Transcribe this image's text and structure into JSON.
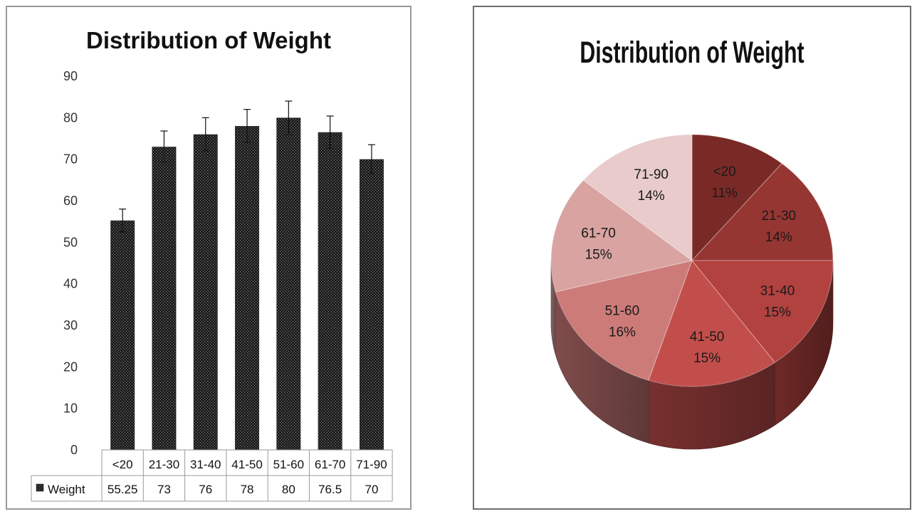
{
  "chart_data": [
    {
      "type": "bar",
      "title": "Distribution of Weight",
      "categories": [
        "<20",
        "21-30",
        "31-40",
        "41-50",
        "51-60",
        "61-70",
        "71-90"
      ],
      "series": [
        {
          "name": "Weight",
          "values": [
            55.25,
            73,
            76,
            78,
            80,
            76.5,
            70
          ],
          "error_upper": [
            58,
            76.8,
            80,
            82,
            84,
            80.4,
            73.5
          ],
          "error_lower": [
            52.5,
            69.2,
            72,
            74,
            76,
            72.6,
            66.5
          ]
        }
      ],
      "ylim": [
        0,
        90
      ],
      "yticks": [
        0,
        10,
        20,
        30,
        40,
        50,
        60,
        70,
        80,
        90
      ],
      "value_labels": [
        "55.25",
        "73",
        "76",
        "78",
        "80",
        "76.5",
        "70"
      ],
      "grid": false,
      "legend": "data-table",
      "colors": {
        "bar": "#1e1e1e",
        "bar_dots": "#8a8a8a"
      }
    },
    {
      "type": "pie",
      "title": "Distribution of Weight",
      "categories": [
        "<20",
        "21-30",
        "31-40",
        "41-50",
        "51-60",
        "61-70",
        "71-90"
      ],
      "values": [
        11,
        14,
        15,
        15,
        16,
        15,
        14
      ],
      "labels": [
        "11%",
        "14%",
        "15%",
        "15%",
        "16%",
        "15%",
        "14%"
      ],
      "style": "3d",
      "colors": [
        "#7a2a26",
        "#963633",
        "#b2423f",
        "#c24e4b",
        "#cd7b79",
        "#d8a3a1",
        "#e8cbca"
      ]
    }
  ]
}
